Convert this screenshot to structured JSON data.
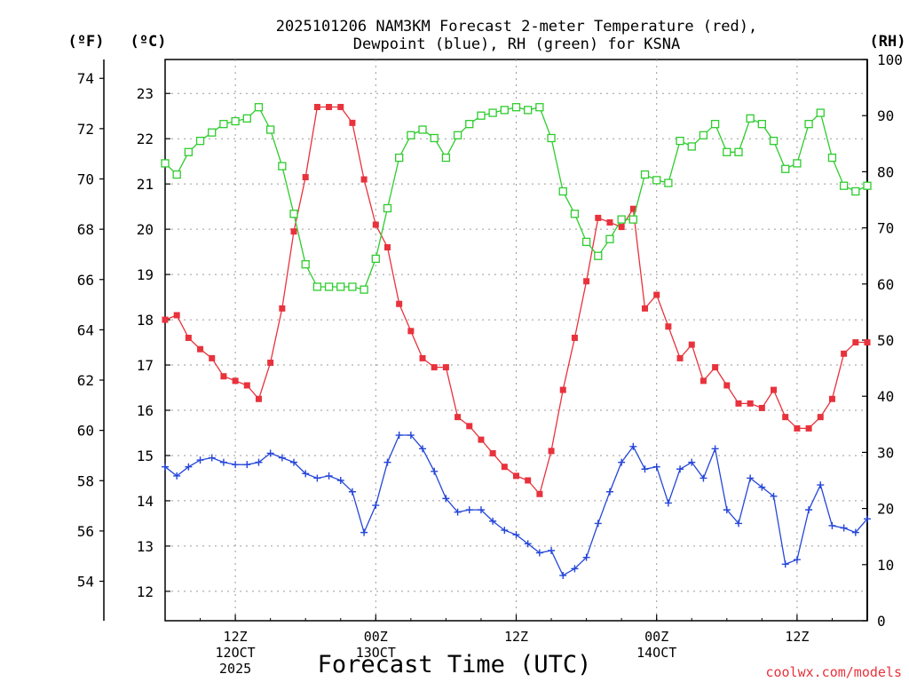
{
  "chart_data": {
    "type": "line",
    "title_line1": "2025101206 NAM3KM Forecast 2-meter Temperature (red),",
    "title_line2": "Dewpoint (blue), RH (green) for KSNA",
    "xlabel": "Forecast Time (UTC)",
    "credit": "coolwx.com/models",
    "units": {
      "fahrenheit": "(ºF)",
      "celsius": "(ºC)",
      "rh": "(RH)"
    },
    "x_range_hours": [
      6,
      66
    ],
    "celsius_range": [
      11.35,
      23.75
    ],
    "rh_range": [
      0,
      100
    ],
    "grid": true,
    "x_ticks": [
      {
        "hour": 12,
        "lines": [
          "12Z",
          "12OCT",
          "2025"
        ]
      },
      {
        "hour": 24,
        "lines": [
          "00Z",
          "13OCT"
        ]
      },
      {
        "hour": 36,
        "lines": [
          "12Z"
        ]
      },
      {
        "hour": 48,
        "lines": [
          "00Z",
          "14OCT"
        ]
      },
      {
        "hour": 60,
        "lines": [
          "12Z"
        ]
      }
    ],
    "celsius_ticks": [
      "12",
      "13",
      "14",
      "15",
      "16",
      "17",
      "18",
      "19",
      "20",
      "21",
      "22",
      "23"
    ],
    "fahrenheit_ticks": [
      "54",
      "56",
      "58",
      "60",
      "62",
      "64",
      "66",
      "68",
      "70",
      "72",
      "74"
    ],
    "rh_ticks": [
      "0",
      "10",
      "20",
      "30",
      "40",
      "50",
      "60",
      "70",
      "80",
      "90",
      "100"
    ],
    "series": [
      {
        "name": "2-meter Temperature",
        "unit": "C",
        "color": "#e8323c",
        "marker": "filled-square",
        "values": [
          18.0,
          18.1,
          17.6,
          17.35,
          17.15,
          16.75,
          16.65,
          16.55,
          16.25,
          17.05,
          18.25,
          19.95,
          21.15,
          22.7,
          22.7,
          22.7,
          22.35,
          21.1,
          20.1,
          19.6,
          18.35,
          17.75,
          17.15,
          16.95,
          16.95,
          15.85,
          15.65,
          15.35,
          15.05,
          14.75,
          14.55,
          14.45,
          14.15,
          15.1,
          16.45,
          17.6,
          18.85,
          20.25,
          20.15,
          20.05,
          20.45,
          18.25,
          18.55,
          17.85,
          17.15,
          17.45,
          16.65,
          16.95,
          16.55,
          16.15,
          16.15,
          16.05,
          16.45,
          15.85,
          15.6,
          15.6,
          15.85,
          16.25,
          17.25,
          17.5,
          17.5
        ]
      },
      {
        "name": "Dewpoint",
        "unit": "C",
        "color": "#2546d8",
        "marker": "plus",
        "values": [
          14.75,
          14.55,
          14.75,
          14.9,
          14.95,
          14.85,
          14.8,
          14.8,
          14.85,
          15.05,
          14.95,
          14.85,
          14.6,
          14.5,
          14.55,
          14.45,
          14.2,
          13.3,
          13.9,
          14.85,
          15.45,
          15.45,
          15.15,
          14.65,
          14.05,
          13.75,
          13.8,
          13.8,
          13.55,
          13.35,
          13.25,
          13.05,
          12.85,
          12.9,
          12.35,
          12.5,
          12.75,
          13.5,
          14.2,
          14.85,
          15.2,
          14.7,
          14.75,
          13.95,
          14.7,
          14.85,
          14.5,
          15.15,
          13.8,
          13.5,
          14.5,
          14.3,
          14.1,
          12.6,
          12.7,
          13.8,
          14.35,
          13.45,
          13.4,
          13.3,
          13.6
        ]
      },
      {
        "name": "RH",
        "unit": "%",
        "color": "#2ecc2e",
        "marker": "open-square",
        "values": [
          81.5,
          79.5,
          83.5,
          85.5,
          87,
          88.5,
          89,
          89.5,
          91.5,
          87.5,
          81,
          72.5,
          63.5,
          59.5,
          59.5,
          59.5,
          59.5,
          59,
          64.5,
          73.5,
          82.5,
          86.5,
          87.5,
          86,
          82.5,
          86.5,
          88.5,
          90,
          90.5,
          91,
          91.5,
          91,
          91.5,
          86,
          76.5,
          72.5,
          67.5,
          65,
          68,
          71.5,
          71.5,
          79.5,
          78.5,
          78,
          85.5,
          84.5,
          86.5,
          88.5,
          83.5,
          83.5,
          89.5,
          88.5,
          85.5,
          80.5,
          81.5,
          88.5,
          90.5,
          82.5,
          77.5,
          76.5,
          77.5
        ]
      }
    ]
  }
}
